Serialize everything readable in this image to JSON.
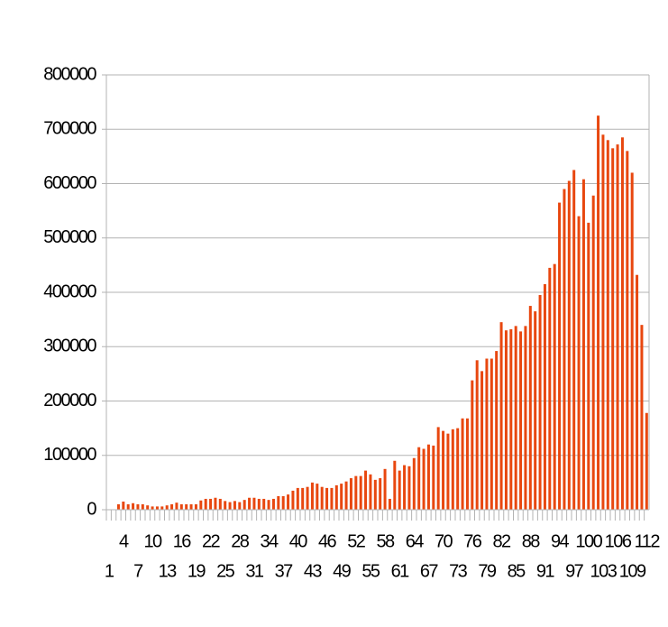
{
  "chart_data": {
    "type": "bar",
    "categories": [
      "1",
      null,
      null,
      "4",
      null,
      null,
      "7",
      null,
      null,
      "10",
      null,
      null,
      "13",
      null,
      null,
      "16",
      null,
      null,
      "19",
      null,
      null,
      "22",
      null,
      null,
      "25",
      null,
      null,
      "28",
      null,
      null,
      "31",
      null,
      null,
      "34",
      null,
      null,
      "37",
      null,
      null,
      "40",
      null,
      null,
      "43",
      null,
      null,
      "46",
      null,
      null,
      "49",
      null,
      null,
      "52",
      null,
      null,
      "55",
      null,
      null,
      "58",
      null,
      null,
      "61",
      null,
      null,
      "64",
      null,
      null,
      "67",
      null,
      null,
      "70",
      null,
      null,
      "73",
      null,
      null,
      "76",
      null,
      null,
      "79",
      null,
      null,
      "82",
      null,
      null,
      "85",
      null,
      null,
      "88",
      null,
      null,
      "91",
      null,
      null,
      "94",
      null,
      null,
      "97",
      null,
      null,
      "100",
      null,
      null,
      "103",
      null,
      null,
      "106",
      null,
      null,
      "109",
      null,
      null,
      "112"
    ],
    "values": [
      0,
      0,
      10000,
      15000,
      10000,
      12000,
      10000,
      10000,
      8000,
      6000,
      6000,
      6000,
      8000,
      10000,
      13000,
      10000,
      10000,
      10000,
      10000,
      17000,
      20000,
      20000,
      22000,
      20000,
      16000,
      14000,
      16000,
      14000,
      18000,
      22000,
      22000,
      20000,
      20000,
      18000,
      20000,
      25000,
      25000,
      28000,
      35000,
      40000,
      40000,
      42000,
      50000,
      48000,
      42000,
      40000,
      40000,
      45000,
      48000,
      52000,
      58000,
      62000,
      62000,
      72000,
      65000,
      55000,
      58000,
      75000,
      20000,
      90000,
      72000,
      82000,
      80000,
      95000,
      115000,
      112000,
      120000,
      118000,
      152000,
      145000,
      140000,
      148000,
      150000,
      168000,
      168000,
      238000,
      275000,
      255000,
      278000,
      278000,
      292000,
      345000,
      330000,
      332000,
      338000,
      328000,
      338000,
      375000,
      365000,
      395000,
      415000,
      445000,
      452000,
      565000,
      590000,
      605000,
      625000,
      540000,
      608000,
      528000,
      578000,
      725000,
      690000,
      680000,
      665000,
      672000,
      685000,
      660000,
      620000,
      432000,
      340000,
      178000
    ],
    "color": "#e8470f",
    "ylim": [
      0,
      800000
    ],
    "yticks": [
      0,
      100000,
      200000,
      300000,
      400000,
      500000,
      600000,
      700000,
      800000
    ],
    "grid": true
  }
}
